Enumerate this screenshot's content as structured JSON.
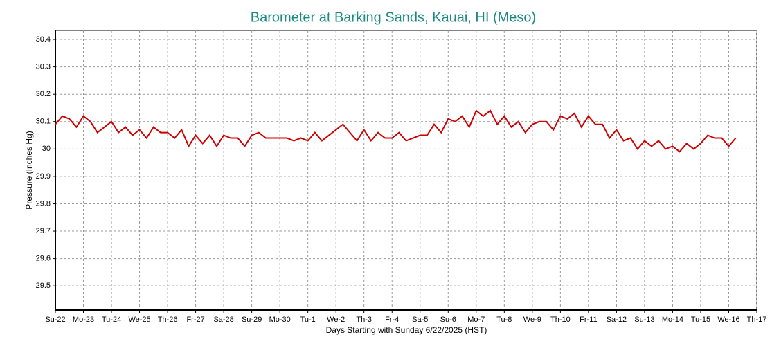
{
  "chart_data": {
    "type": "line",
    "title": "Barometer at Barking Sands, Kauai, HI (Meso)",
    "x_label": "Days Starting with Sunday 6/22/2025 (HST)",
    "y_label": "Pressure (Inches Hg)",
    "xlim": [
      0,
      25
    ],
    "ylim": [
      29.412,
      30.433
    ],
    "xticks": [
      {
        "value": 0,
        "label": "Su-22"
      },
      {
        "value": 1,
        "label": "Mo-23"
      },
      {
        "value": 2,
        "label": "Tu-24"
      },
      {
        "value": 3,
        "label": "We-25"
      },
      {
        "value": 4,
        "label": "Th-26"
      },
      {
        "value": 5,
        "label": "Fr-27"
      },
      {
        "value": 6,
        "label": "Sa-28"
      },
      {
        "value": 7,
        "label": "Su-29"
      },
      {
        "value": 8,
        "label": "Mo-30"
      },
      {
        "value": 9,
        "label": "Tu-1"
      },
      {
        "value": 10,
        "label": "We-2"
      },
      {
        "value": 11,
        "label": "Th-3"
      },
      {
        "value": 12,
        "label": "Fr-4"
      },
      {
        "value": 13,
        "label": "Sa-5"
      },
      {
        "value": 14,
        "label": "Su-6"
      },
      {
        "value": 15,
        "label": "Mo-7"
      },
      {
        "value": 16,
        "label": "Tu-8"
      },
      {
        "value": 17,
        "label": "We-9"
      },
      {
        "value": 18,
        "label": "Th-10"
      },
      {
        "value": 19,
        "label": "Fr-11"
      },
      {
        "value": 20,
        "label": "Sa-12"
      },
      {
        "value": 21,
        "label": "Su-13"
      },
      {
        "value": 22,
        "label": "Mo-14"
      },
      {
        "value": 23,
        "label": "Tu-15"
      },
      {
        "value": 24,
        "label": "We-16"
      },
      {
        "value": 25,
        "label": "Th-17"
      }
    ],
    "yticks": [
      29.5,
      29.6,
      29.7,
      29.8,
      29.9,
      30,
      30.1,
      30.2,
      30.3,
      30.4
    ],
    "grid": true,
    "x": [
      0,
      0.25,
      0.5,
      0.75,
      1,
      1.25,
      1.5,
      1.75,
      2,
      2.25,
      2.5,
      2.75,
      3,
      3.25,
      3.5,
      3.75,
      4,
      4.25,
      4.5,
      4.75,
      5,
      5.25,
      5.5,
      5.75,
      6,
      6.25,
      6.5,
      6.75,
      7,
      7.25,
      7.5,
      7.75,
      8,
      8.25,
      8.5,
      8.75,
      9,
      9.25,
      9.5,
      9.75,
      10,
      10.25,
      10.5,
      10.75,
      11,
      11.25,
      11.5,
      11.75,
      12,
      12.25,
      12.5,
      12.75,
      13,
      13.25,
      13.5,
      13.75,
      14,
      14.25,
      14.5,
      14.75,
      15,
      15.25,
      15.5,
      15.75,
      16,
      16.25,
      16.5,
      16.75,
      17,
      17.25,
      17.5,
      17.75,
      18,
      18.25,
      18.5,
      18.75,
      19,
      19.25,
      19.5,
      19.75,
      20,
      20.25,
      20.5,
      20.75,
      21,
      21.25,
      21.5,
      21.75,
      22,
      22.25,
      22.5,
      22.75,
      23,
      23.25,
      23.5,
      23.75,
      24,
      24.25
    ],
    "series": [
      {
        "name": "Pressure",
        "color": "#cc0000",
        "values": [
          30.09,
          30.12,
          30.11,
          30.08,
          30.12,
          30.1,
          30.06,
          30.08,
          30.1,
          30.06,
          30.08,
          30.05,
          30.07,
          30.04,
          30.08,
          30.06,
          30.06,
          30.04,
          30.07,
          30.01,
          30.05,
          30.02,
          30.05,
          30.01,
          30.05,
          30.04,
          30.04,
          30.01,
          30.05,
          30.06,
          30.04,
          30.04,
          30.04,
          30.04,
          30.03,
          30.04,
          30.03,
          30.06,
          30.03,
          30.05,
          30.07,
          30.09,
          30.06,
          30.03,
          30.07,
          30.03,
          30.06,
          30.04,
          30.04,
          30.06,
          30.03,
          30.04,
          30.05,
          30.05,
          30.09,
          30.06,
          30.11,
          30.1,
          30.12,
          30.08,
          30.14,
          30.12,
          30.14,
          30.09,
          30.12,
          30.08,
          30.1,
          30.06,
          30.09,
          30.1,
          30.1,
          30.07,
          30.12,
          30.11,
          30.13,
          30.08,
          30.12,
          30.09,
          30.09,
          30.04,
          30.07,
          30.03,
          30.04,
          30.0,
          30.03,
          30.01,
          30.03,
          30.0,
          30.01,
          29.99,
          30.02,
          30.0,
          30.02,
          30.05,
          30.04,
          30.04,
          30.01,
          30.04
        ]
      }
    ]
  }
}
